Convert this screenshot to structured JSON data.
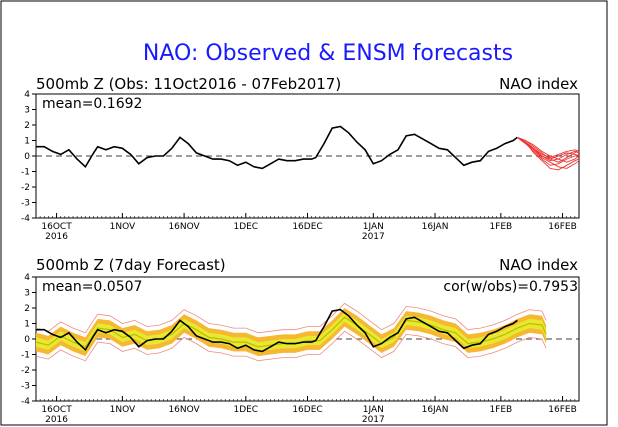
{
  "header": {
    "title": "NAO: Observed & ENSM forecasts"
  },
  "panels": [
    {
      "subtitle": "500mb Z (Obs: 11Oct2016 - 07Feb2017)",
      "right_label": "NAO index",
      "mean_label": "mean=0.1692",
      "corr_label": ""
    },
    {
      "subtitle": "500mb Z (7day Forecast)",
      "right_label": "NAO index",
      "mean_label": "mean=0.0507",
      "corr_label": "cor(w/obs)=0.7953"
    }
  ],
  "colors": {
    "observed": "#000000",
    "ensemble_forecast": "#ee3333",
    "band_outer": "#f08a80",
    "band_orange": "#f5b830",
    "band_yellow": "#e8e830",
    "ens_mean": "#bcbc00",
    "title": "#1a1aff"
  },
  "chart_data": [
    {
      "type": "line",
      "title": "500mb Z (Obs: 11Oct2016 - 07Feb2017)",
      "ylabel": "",
      "ylim": [
        -4,
        4
      ],
      "xlim": [
        0,
        132
      ],
      "y_ticks": [
        "4",
        "3",
        "2",
        "1",
        "0",
        "-1",
        "-2",
        "-3",
        "-4"
      ],
      "x_ticks": [
        {
          "x": 5,
          "label": "16OCT",
          "sub": "2016"
        },
        {
          "x": 21,
          "label": "1NOV",
          "sub": ""
        },
        {
          "x": 36,
          "label": "16NOV",
          "sub": ""
        },
        {
          "x": 51,
          "label": "1DEC",
          "sub": ""
        },
        {
          "x": 66,
          "label": "16DEC",
          "sub": ""
        },
        {
          "x": 82,
          "label": "1JAN",
          "sub": "2017"
        },
        {
          "x": 97,
          "label": "16JAN",
          "sub": ""
        },
        {
          "x": 113,
          "label": "1FEB",
          "sub": ""
        },
        {
          "x": 128,
          "label": "16FEB",
          "sub": ""
        }
      ],
      "series": [
        {
          "name": "",
          "style": "observed",
          "x": [
            0,
            2,
            4,
            6,
            8,
            10,
            12,
            14,
            15,
            17,
            19,
            21,
            23,
            25,
            27,
            29,
            31,
            33,
            35,
            37,
            39,
            41,
            43,
            45,
            47,
            49,
            51,
            53,
            55,
            57,
            59,
            61,
            63,
            65,
            67,
            68,
            70,
            72,
            74,
            76,
            78,
            80,
            82,
            84,
            86,
            88,
            90,
            92,
            94,
            96,
            98,
            100,
            102,
            104,
            106,
            108,
            110,
            112,
            114,
            116,
            117
          ],
          "y": [
            0.6,
            0.6,
            0.3,
            0.1,
            0.4,
            -0.2,
            -0.7,
            0.2,
            0.6,
            0.4,
            0.6,
            0.5,
            0.1,
            -0.5,
            -0.1,
            0,
            0,
            0.5,
            1.2,
            0.8,
            0.2,
            0,
            -0.2,
            -0.2,
            -0.3,
            -0.6,
            -0.4,
            -0.7,
            -0.8,
            -0.5,
            -0.2,
            -0.3,
            -0.3,
            -0.2,
            -0.2,
            -0.1,
            0.8,
            1.8,
            1.9,
            1.5,
            0.9,
            0.4,
            -0.5,
            -0.3,
            0.1,
            0.4,
            1.3,
            1.4,
            1.1,
            0.8,
            0.5,
            0.4,
            -0.1,
            -0.6,
            -0.4,
            -0.3,
            0.3,
            0.5,
            0.8,
            1.0,
            1.2
          ]
        },
        {
          "name": "",
          "style": "ensemble",
          "x": [
            117,
            119,
            121,
            123,
            125,
            127,
            129,
            131,
            132
          ],
          "members": [
            [
              1.2,
              0.9,
              0.4,
              0.0,
              -0.3,
              -0.2,
              0.1,
              0.3,
              0.2
            ],
            [
              1.2,
              1.0,
              0.6,
              0.2,
              -0.2,
              -0.4,
              -0.1,
              0.2,
              0.4
            ],
            [
              1.2,
              0.8,
              0.3,
              -0.2,
              -0.6,
              -0.5,
              -0.2,
              0.0,
              0.1
            ],
            [
              1.2,
              0.9,
              0.5,
              0.1,
              -0.1,
              0.1,
              0.3,
              0.4,
              0.3
            ],
            [
              1.2,
              0.9,
              0.2,
              -0.3,
              -0.8,
              -0.9,
              -0.6,
              -0.3,
              -0.2
            ],
            [
              1.2,
              1.0,
              0.7,
              0.3,
              0.0,
              -0.2,
              -0.4,
              -0.2,
              0.0
            ],
            [
              1.2,
              0.8,
              0.4,
              -0.1,
              -0.4,
              -0.7,
              -0.8,
              -0.5,
              -0.3
            ],
            [
              1.2,
              0.9,
              0.5,
              0.0,
              -0.2,
              0.0,
              0.2,
              0.1,
              0.0
            ]
          ]
        }
      ]
    },
    {
      "type": "area",
      "title": "500mb Z (7day Forecast)",
      "ylabel": "",
      "ylim": [
        -4,
        4
      ],
      "xlim": [
        0,
        132
      ],
      "y_ticks": [
        "4",
        "3",
        "2",
        "1",
        "0",
        "-1",
        "-2",
        "-3",
        "-4"
      ],
      "x_ticks": [
        {
          "x": 5,
          "label": "16OCT",
          "sub": "2016"
        },
        {
          "x": 21,
          "label": "1NOV",
          "sub": ""
        },
        {
          "x": 36,
          "label": "16NOV",
          "sub": ""
        },
        {
          "x": 51,
          "label": "1DEC",
          "sub": ""
        },
        {
          "x": 66,
          "label": "16DEC",
          "sub": ""
        },
        {
          "x": 82,
          "label": "1JAN",
          "sub": "2017"
        },
        {
          "x": 97,
          "label": "16JAN",
          "sub": ""
        },
        {
          "x": 113,
          "label": "1FEB",
          "sub": ""
        },
        {
          "x": 128,
          "label": "16FEB",
          "sub": ""
        }
      ],
      "series": [
        {
          "name": "",
          "style": "ens_mean",
          "x": [
            0,
            3,
            6,
            9,
            12,
            15,
            18,
            21,
            24,
            27,
            30,
            33,
            36,
            39,
            42,
            45,
            48,
            51,
            54,
            57,
            60,
            63,
            66,
            69,
            72,
            75,
            78,
            81,
            84,
            87,
            90,
            93,
            96,
            99,
            102,
            105,
            108,
            111,
            114,
            117,
            120,
            123,
            124
          ],
          "y": [
            -0.2,
            -0.4,
            0.2,
            -0.2,
            -0.5,
            0.7,
            0.6,
            0.1,
            0.3,
            -0.1,
            0.0,
            0.3,
            1.0,
            0.6,
            0.1,
            0.0,
            -0.2,
            -0.2,
            -0.5,
            -0.4,
            -0.3,
            -0.3,
            -0.1,
            -0.1,
            0.6,
            1.4,
            0.9,
            0.3,
            -0.3,
            0.1,
            1.2,
            1.1,
            0.9,
            0.6,
            0.4,
            -0.3,
            -0.2,
            0.0,
            0.3,
            0.7,
            1.0,
            0.9,
            0.3
          ],
          "spread_inner": 0.3,
          "spread_mid": 0.6,
          "spread_outer": 0.9
        },
        {
          "name": "",
          "style": "observed",
          "x": [
            0,
            2,
            4,
            6,
            8,
            10,
            12,
            14,
            15,
            17,
            19,
            21,
            23,
            25,
            27,
            29,
            31,
            33,
            35,
            37,
            39,
            41,
            43,
            45,
            47,
            49,
            51,
            53,
            55,
            57,
            59,
            61,
            63,
            65,
            67,
            68,
            70,
            72,
            74,
            76,
            78,
            80,
            82,
            84,
            86,
            88,
            90,
            92,
            94,
            96,
            98,
            100,
            102,
            104,
            106,
            108,
            110,
            112,
            114,
            116,
            117
          ],
          "y": [
            0.6,
            0.6,
            0.3,
            0.1,
            0.4,
            -0.2,
            -0.7,
            0.2,
            0.6,
            0.4,
            0.6,
            0.5,
            0.1,
            -0.5,
            -0.1,
            0,
            0,
            0.5,
            1.2,
            0.8,
            0.2,
            0,
            -0.2,
            -0.2,
            -0.3,
            -0.6,
            -0.4,
            -0.7,
            -0.8,
            -0.5,
            -0.2,
            -0.3,
            -0.3,
            -0.2,
            -0.2,
            -0.1,
            0.8,
            1.8,
            1.9,
            1.5,
            0.9,
            0.4,
            -0.5,
            -0.3,
            0.1,
            0.4,
            1.3,
            1.4,
            1.1,
            0.8,
            0.5,
            0.4,
            -0.1,
            -0.6,
            -0.4,
            -0.3,
            0.3,
            0.5,
            0.8,
            1.0,
            1.2
          ]
        }
      ]
    }
  ]
}
